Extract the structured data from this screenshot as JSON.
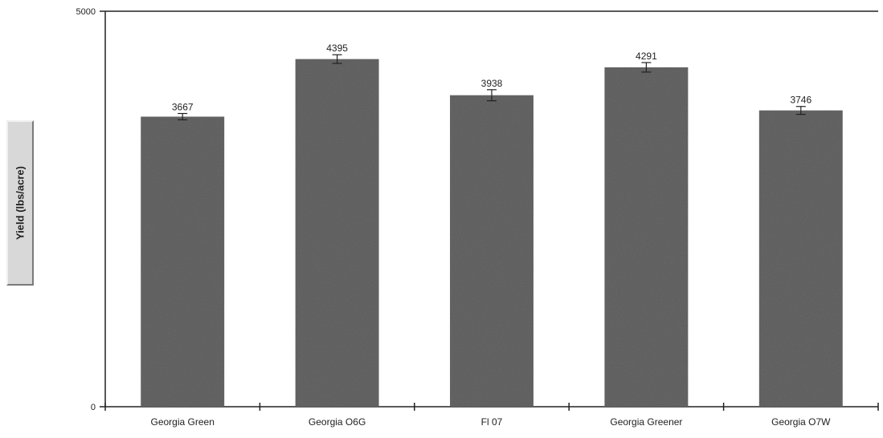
{
  "chart_data": {
    "type": "bar",
    "title": "",
    "xlabel": "",
    "ylabel": "Yield (lbs/acre)",
    "ylim": [
      0,
      5000
    ],
    "yticks": [
      "0",
      "5000"
    ],
    "categories": [
      "Georgia Green",
      "Georgia O6G",
      "Fl 07",
      "Georgia Greener",
      "Georgia O7W"
    ],
    "values": [
      3667,
      4395,
      3938,
      4291,
      3746
    ],
    "data_labels": [
      "3667",
      "4395",
      "3938",
      "4291",
      "3746"
    ],
    "error": [
      80,
      110,
      140,
      120,
      100
    ],
    "grid": false,
    "legend": "none",
    "bar_color": "#6c6c6c"
  }
}
